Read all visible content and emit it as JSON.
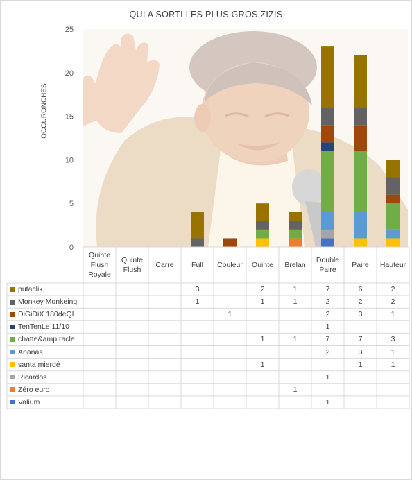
{
  "chart_data": {
    "type": "bar",
    "stacked": true,
    "title": "QUI A SORTI LES PLUS GROS ZIZIS",
    "ylabel": "OCCURONCHES",
    "xlabel": "",
    "ylim": [
      0,
      25
    ],
    "yticks": [
      "0",
      "5",
      "10",
      "15",
      "20",
      "25"
    ],
    "grid": false,
    "legend": "data-table",
    "background": "faded photograph of a laughing man with raised hand and microphone",
    "categories": [
      "Quinte Flush Royale",
      "Quinte Flush",
      "Carre",
      "Full",
      "Couleur",
      "Quinte",
      "Brelan",
      "Double Paire",
      "Paire",
      "Hauteur"
    ],
    "series": [
      {
        "name": "Valium",
        "color": "#4472c4",
        "values": [
          null,
          null,
          null,
          null,
          null,
          null,
          null,
          1,
          null,
          null
        ]
      },
      {
        "name": "Zéro euro",
        "color": "#ed7d31",
        "values": [
          null,
          null,
          null,
          null,
          null,
          null,
          1,
          null,
          null,
          null
        ]
      },
      {
        "name": "Ricardos",
        "color": "#a5a5a5",
        "values": [
          null,
          null,
          null,
          null,
          null,
          null,
          null,
          1,
          null,
          null
        ]
      },
      {
        "name": "santa mierdé",
        "color": "#ffc000",
        "values": [
          null,
          null,
          null,
          null,
          null,
          1,
          null,
          null,
          1,
          1
        ]
      },
      {
        "name": "Ananas",
        "color": "#5b9bd5",
        "values": [
          null,
          null,
          null,
          null,
          null,
          null,
          null,
          2,
          3,
          1
        ]
      },
      {
        "name": "chatte&amp;racle",
        "color": "#70ad47",
        "values": [
          null,
          null,
          null,
          null,
          null,
          1,
          1,
          7,
          7,
          3
        ]
      },
      {
        "name": "TenTenLe 11/10",
        "color": "#264478",
        "values": [
          null,
          null,
          null,
          null,
          null,
          null,
          null,
          1,
          null,
          null
        ]
      },
      {
        "name": "DiGiDiX 180deQI",
        "color": "#9e480e",
        "values": [
          null,
          null,
          null,
          null,
          1,
          null,
          null,
          2,
          3,
          1
        ]
      },
      {
        "name": "Monkey Monkeing",
        "color": "#636363",
        "values": [
          null,
          null,
          null,
          1,
          null,
          1,
          1,
          2,
          2,
          2
        ]
      },
      {
        "name": "putaclik",
        "color": "#997300",
        "values": [
          null,
          null,
          null,
          3,
          null,
          2,
          1,
          7,
          6,
          2
        ]
      }
    ]
  }
}
